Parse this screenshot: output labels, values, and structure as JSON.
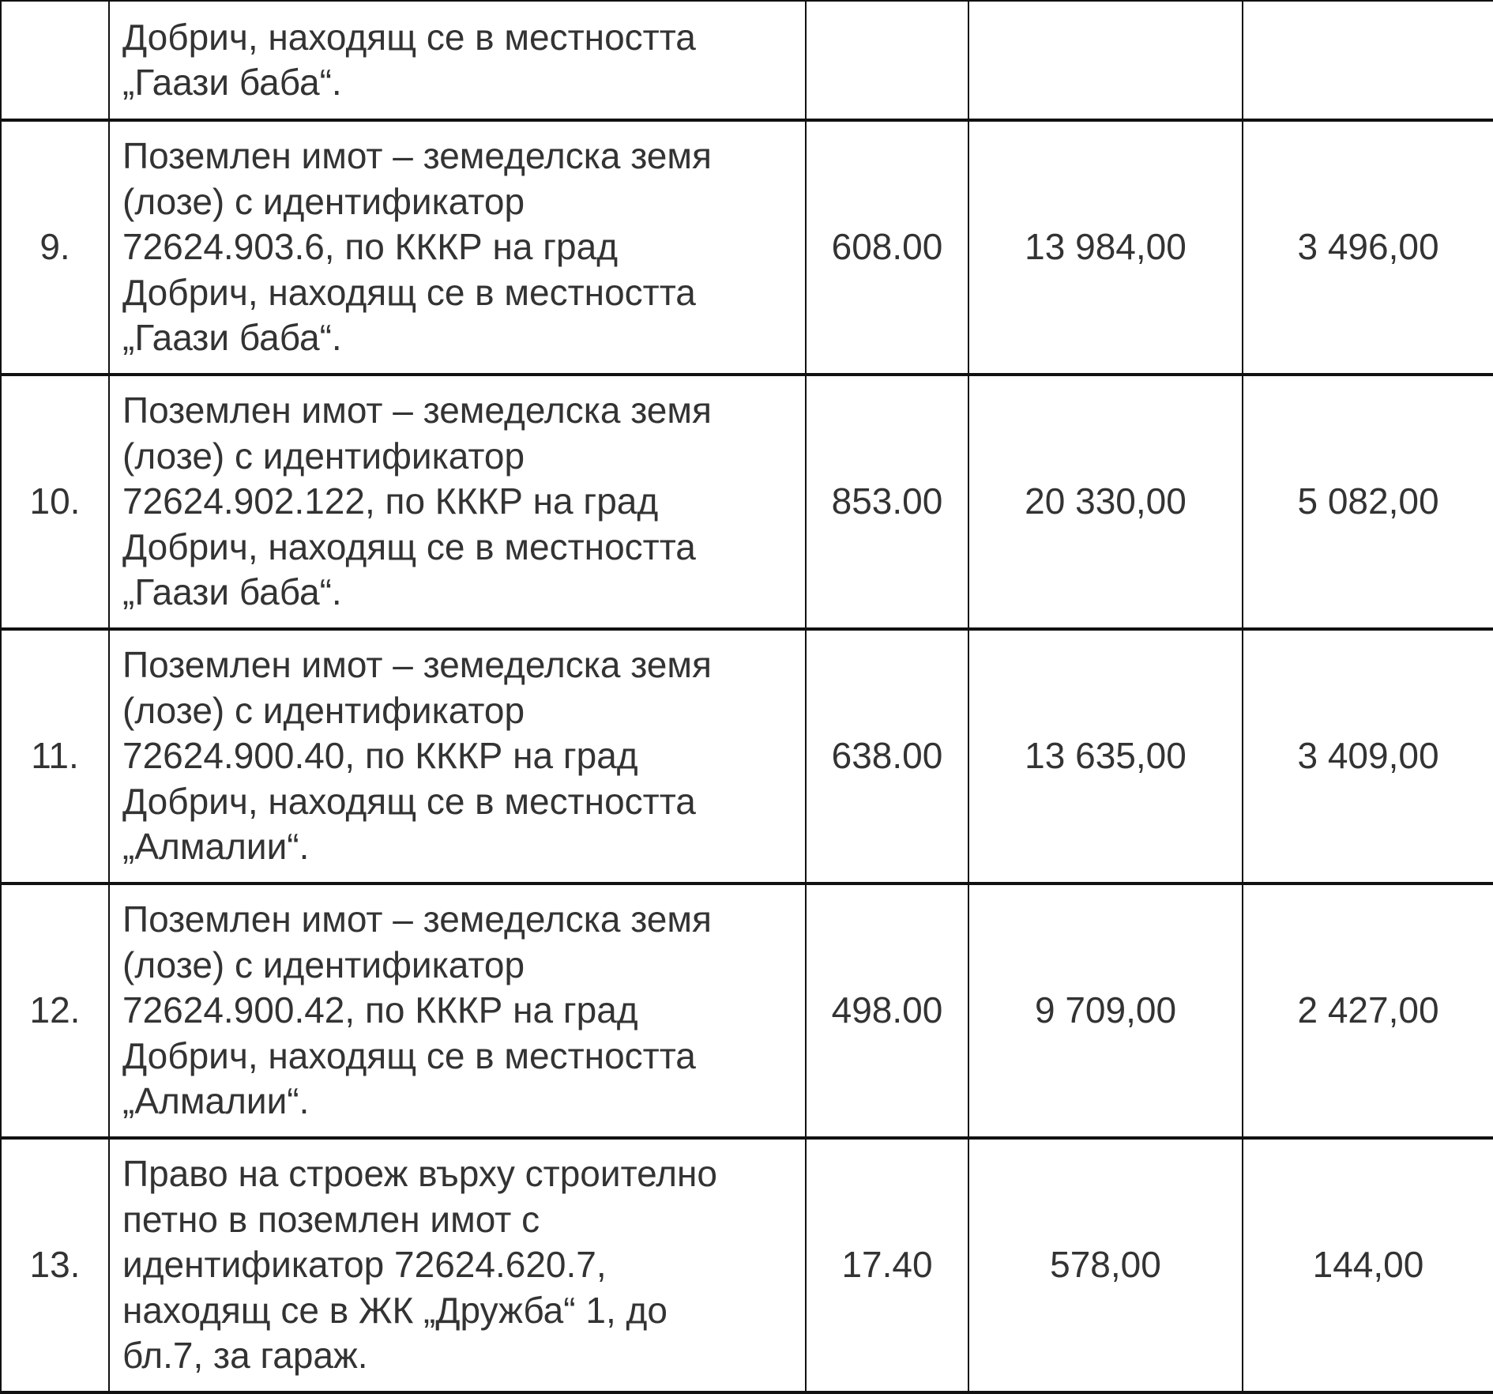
{
  "table": {
    "rows": [
      {
        "no": "",
        "description": [
          "Добрич, находящ се в местността",
          "„Гаази баба“."
        ],
        "area": "",
        "market_value": "",
        "price": ""
      },
      {
        "no": "9.",
        "description": [
          "Поземлен имот – земеделска земя",
          "(лозе) с идентификатор",
          "72624.903.6, по КККР на град",
          "Добрич, находящ се в местността",
          "„Гаази баба“."
        ],
        "area": "608.00",
        "market_value": "13 984,00",
        "price": "3 496,00"
      },
      {
        "no": "10.",
        "description": [
          "Поземлен имот – земеделска земя",
          "(лозе) с идентификатор",
          "72624.902.122, по КККР на град",
          "Добрич, находящ се в местността",
          "„Гаази баба“."
        ],
        "area": "853.00",
        "market_value": "20 330,00",
        "price": "5 082,00"
      },
      {
        "no": "11.",
        "description": [
          "Поземлен имот – земеделска земя",
          "(лозе) с идентификатор",
          "72624.900.40, по КККР на град",
          "Добрич, находящ се в местността",
          "„Алмалии“."
        ],
        "area": "638.00",
        "market_value": "13 635,00",
        "price": "3 409,00"
      },
      {
        "no": "12.",
        "description": [
          "Поземлен имот – земеделска земя",
          "(лозе) с идентификатор",
          "72624.900.42, по КККР на град",
          "Добрич, находящ се в местността",
          "„Алмалии“."
        ],
        "area": "498.00",
        "market_value": "9 709,00",
        "price": "2 427,00"
      },
      {
        "no": "13.",
        "description": [
          "Право на строеж върху строително",
          "петно в поземлен имот с",
          "идентификатор 72624.620.7,",
          "находящ се в ЖК „Дружба“ 1, до",
          "бл.7, за гараж."
        ],
        "area": "17.40",
        "market_value": "578,00",
        "price": "144,00"
      }
    ]
  }
}
